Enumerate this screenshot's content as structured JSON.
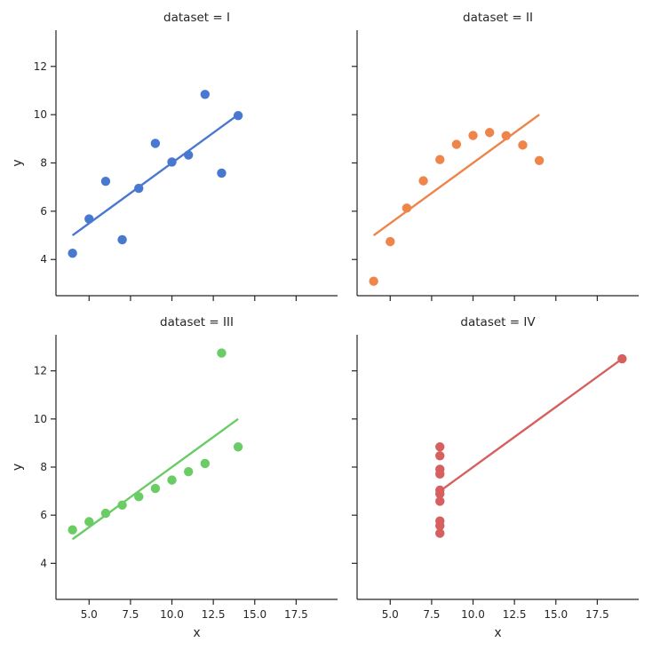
{
  "chart_data": {
    "type": "scatter",
    "layout": "2x2 facet grid, shared x and y axes, regression line per panel",
    "shared_x": {
      "label": "x",
      "ticks": [
        "5.0",
        "7.5",
        "10.0",
        "12.5",
        "15.0",
        "17.5"
      ],
      "tick_values": [
        5,
        7.5,
        10,
        12.5,
        15,
        17.5
      ],
      "range": [
        3,
        20
      ]
    },
    "shared_y": {
      "label": "y",
      "ticks": [
        "4",
        "6",
        "8",
        "10",
        "12"
      ],
      "tick_values": [
        4,
        6,
        8,
        10,
        12
      ],
      "range": [
        2.5,
        13.5
      ]
    },
    "grid": false,
    "panels": [
      {
        "title": "dataset = I",
        "color": "#4878d0",
        "x": [
          4,
          5,
          6,
          7,
          8,
          9,
          10,
          11,
          12,
          13,
          14
        ],
        "y": [
          4.26,
          5.68,
          7.24,
          4.82,
          6.95,
          8.81,
          8.04,
          8.33,
          10.84,
          7.58,
          9.96
        ],
        "fit": {
          "x": [
            4,
            14
          ],
          "y": [
            5.0,
            10.0
          ]
        }
      },
      {
        "title": "dataset = II",
        "color": "#ee854a",
        "x": [
          4,
          5,
          6,
          7,
          8,
          9,
          10,
          11,
          12,
          13,
          14
        ],
        "y": [
          3.1,
          4.74,
          6.13,
          7.26,
          8.14,
          8.77,
          9.14,
          9.26,
          9.13,
          8.74,
          8.1
        ],
        "fit": {
          "x": [
            4,
            14
          ],
          "y": [
            5.0,
            10.0
          ]
        }
      },
      {
        "title": "dataset = III",
        "color": "#6acc64",
        "x": [
          4,
          5,
          6,
          7,
          8,
          9,
          10,
          11,
          12,
          13,
          14
        ],
        "y": [
          5.39,
          5.73,
          6.08,
          6.42,
          6.77,
          7.11,
          7.46,
          7.81,
          8.15,
          12.74,
          8.84
        ],
        "fit": {
          "x": [
            4,
            14
          ],
          "y": [
            5.0,
            10.0
          ]
        }
      },
      {
        "title": "dataset = IV",
        "color": "#d65f5f",
        "x": [
          8,
          8,
          8,
          8,
          8,
          8,
          8,
          8,
          8,
          8,
          19
        ],
        "y": [
          5.25,
          5.56,
          5.76,
          6.58,
          6.89,
          7.04,
          7.71,
          7.91,
          8.47,
          8.84,
          12.5
        ],
        "fit": {
          "x": [
            8,
            19
          ],
          "y": [
            7.0,
            12.5
          ]
        }
      }
    ]
  }
}
